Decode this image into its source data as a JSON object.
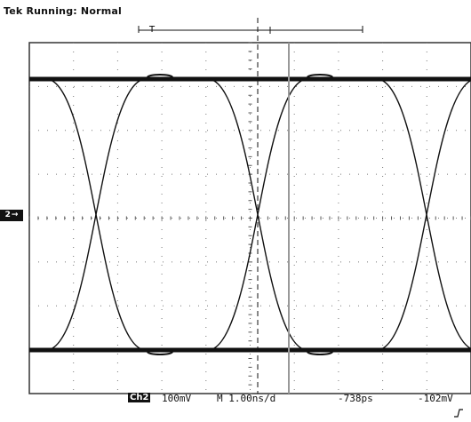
{
  "status": {
    "brand": "Tek",
    "state": "Running: Normal"
  },
  "trigger_window": {
    "label": "T"
  },
  "channel": {
    "label": "Ch2",
    "marker_label": "2",
    "marker_arrow": "→"
  },
  "readout": {
    "channel": "Ch2",
    "vertical_scale": "100mV",
    "horizontal": "M 1.00ns/d",
    "trigger_position": "-738ps",
    "trigger_level": "-102mV"
  },
  "icons": {
    "trigger_slope": "rising-edge-icon"
  },
  "colors": {
    "background": "#ffffff",
    "trace": "#111111",
    "grid": "#555555"
  }
}
